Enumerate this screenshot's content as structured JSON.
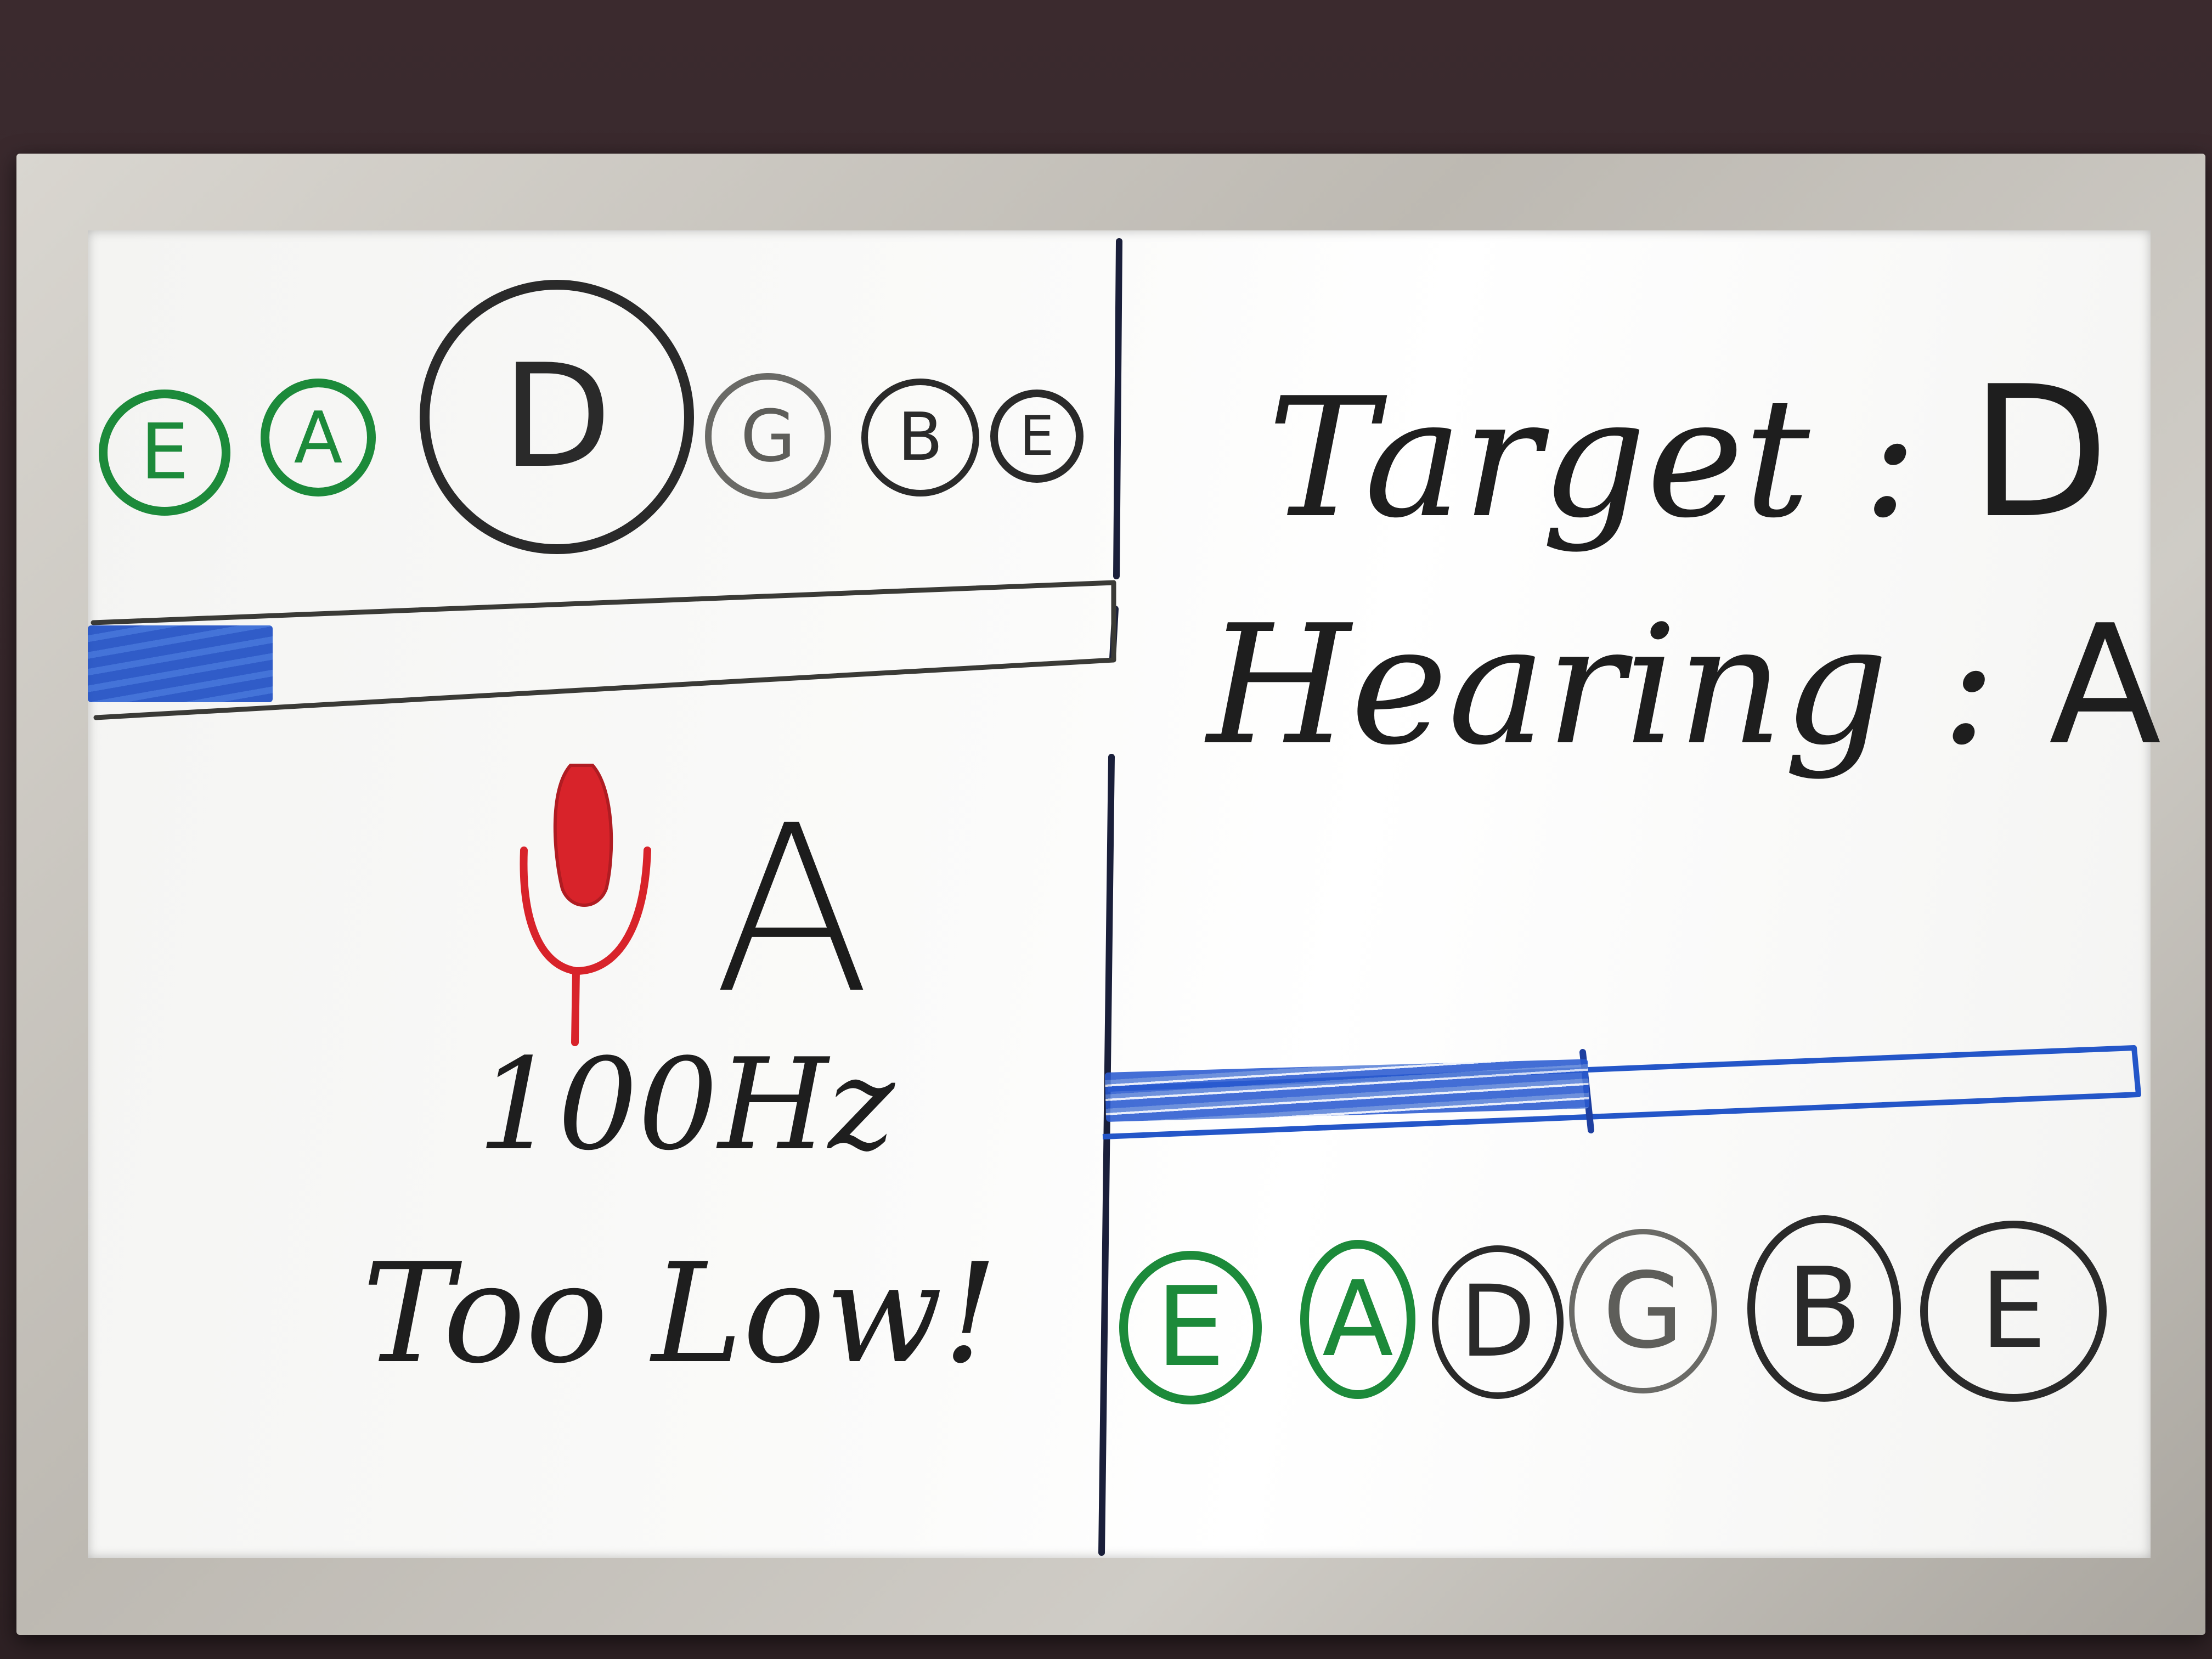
{
  "left_panel": {
    "note_sequence": [
      "E",
      "A",
      "D",
      "G",
      "B",
      "E"
    ],
    "active_note": "D",
    "played_notes": [
      "E",
      "A"
    ],
    "progress_fraction": 0.18,
    "detected_note": "A",
    "frequency_label": "100Hz",
    "status_message": "Too Low!",
    "mic_icon": "microphone-icon"
  },
  "right_panel": {
    "target_label": "Target",
    "target_value": "D",
    "hearing_label": "Hearing",
    "hearing_value": "A",
    "progress_fraction": 0.47,
    "note_sequence": [
      "E",
      "A",
      "D",
      "G",
      "B",
      "E"
    ],
    "played_notes": [
      "E",
      "A"
    ]
  },
  "colors": {
    "green_marker": "#1c8a3a",
    "blue_marker": "#2456c8",
    "red_marker": "#d8232a",
    "black_marker": "#1d1d1d",
    "divider": "#1a1f3a"
  }
}
